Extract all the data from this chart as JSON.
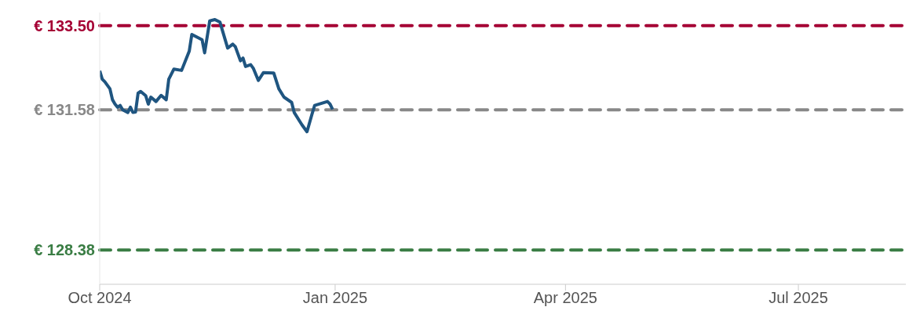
{
  "chart_data": {
    "type": "line",
    "x": [
      "2024-10-01",
      "2024-10-02",
      "2024-10-03",
      "2024-10-05",
      "2024-10-06",
      "2024-10-07",
      "2024-10-08",
      "2024-10-09",
      "2024-10-10",
      "2024-10-12",
      "2024-10-13",
      "2024-10-14",
      "2024-10-15",
      "2024-10-16",
      "2024-10-17",
      "2024-10-19",
      "2024-10-20",
      "2024-10-21",
      "2024-10-23",
      "2024-10-25",
      "2024-10-27",
      "2024-10-28",
      "2024-10-30",
      "2024-11-02",
      "2024-11-05",
      "2024-11-06",
      "2024-11-10",
      "2024-11-11",
      "2024-11-13",
      "2024-11-15",
      "2024-11-17",
      "2024-11-20",
      "2024-11-22",
      "2024-11-23",
      "2024-11-25",
      "2024-11-26",
      "2024-11-27",
      "2024-11-29",
      "2024-11-30",
      "2024-12-02",
      "2024-12-04",
      "2024-12-08",
      "2024-12-10",
      "2024-12-12",
      "2024-12-15",
      "2024-12-16",
      "2024-12-19",
      "2024-12-21",
      "2024-12-23",
      "2024-12-24",
      "2024-12-29",
      "2024-12-30",
      "2024-12-31"
    ],
    "series": [
      {
        "color": "#1f5580",
        "values": [
          132.47,
          132.28,
          132.22,
          132.06,
          131.81,
          131.71,
          131.64,
          131.68,
          131.58,
          131.52,
          131.64,
          131.52,
          131.53,
          131.96,
          132.0,
          131.9,
          131.71,
          131.87,
          131.77,
          131.91,
          131.81,
          132.28,
          132.51,
          132.48,
          132.92,
          133.3,
          133.18,
          132.88,
          133.61,
          133.64,
          133.58,
          132.99,
          133.08,
          133.02,
          132.7,
          132.76,
          132.57,
          132.61,
          132.53,
          132.25,
          132.43,
          132.42,
          132.06,
          131.87,
          131.75,
          131.52,
          131.24,
          131.08,
          131.49,
          131.68,
          131.77,
          131.71,
          131.59
        ]
      }
    ],
    "xlim": [
      "2024-10-01",
      "2025-08-12"
    ],
    "xticks": [
      {
        "value": "2024-10-01",
        "label": "Oct 2024"
      },
      {
        "value": "2025-01-01",
        "label": "Jan 2025"
      },
      {
        "value": "2025-04-01",
        "label": "Apr 2025"
      },
      {
        "value": "2025-07-01",
        "label": "Jul 2025"
      }
    ],
    "ylim": [
      127.6,
      133.8
    ],
    "yticks": [
      {
        "value": 128.38,
        "label": "€ 128.38"
      },
      {
        "value": 131.58,
        "label": "€ 131.58"
      },
      {
        "value": 133.5,
        "label": "€ 133.50"
      }
    ],
    "ref_lines": [
      {
        "axis": "y",
        "value": 133.5,
        "color": "#a50034",
        "line_style": "dashed"
      },
      {
        "axis": "y",
        "value": 131.58,
        "color": "#888888",
        "line_style": "dashed"
      },
      {
        "axis": "y",
        "value": 128.38,
        "color": "#3a7d44",
        "line_style": "dashed"
      }
    ],
    "grid": false,
    "legend": false
  }
}
